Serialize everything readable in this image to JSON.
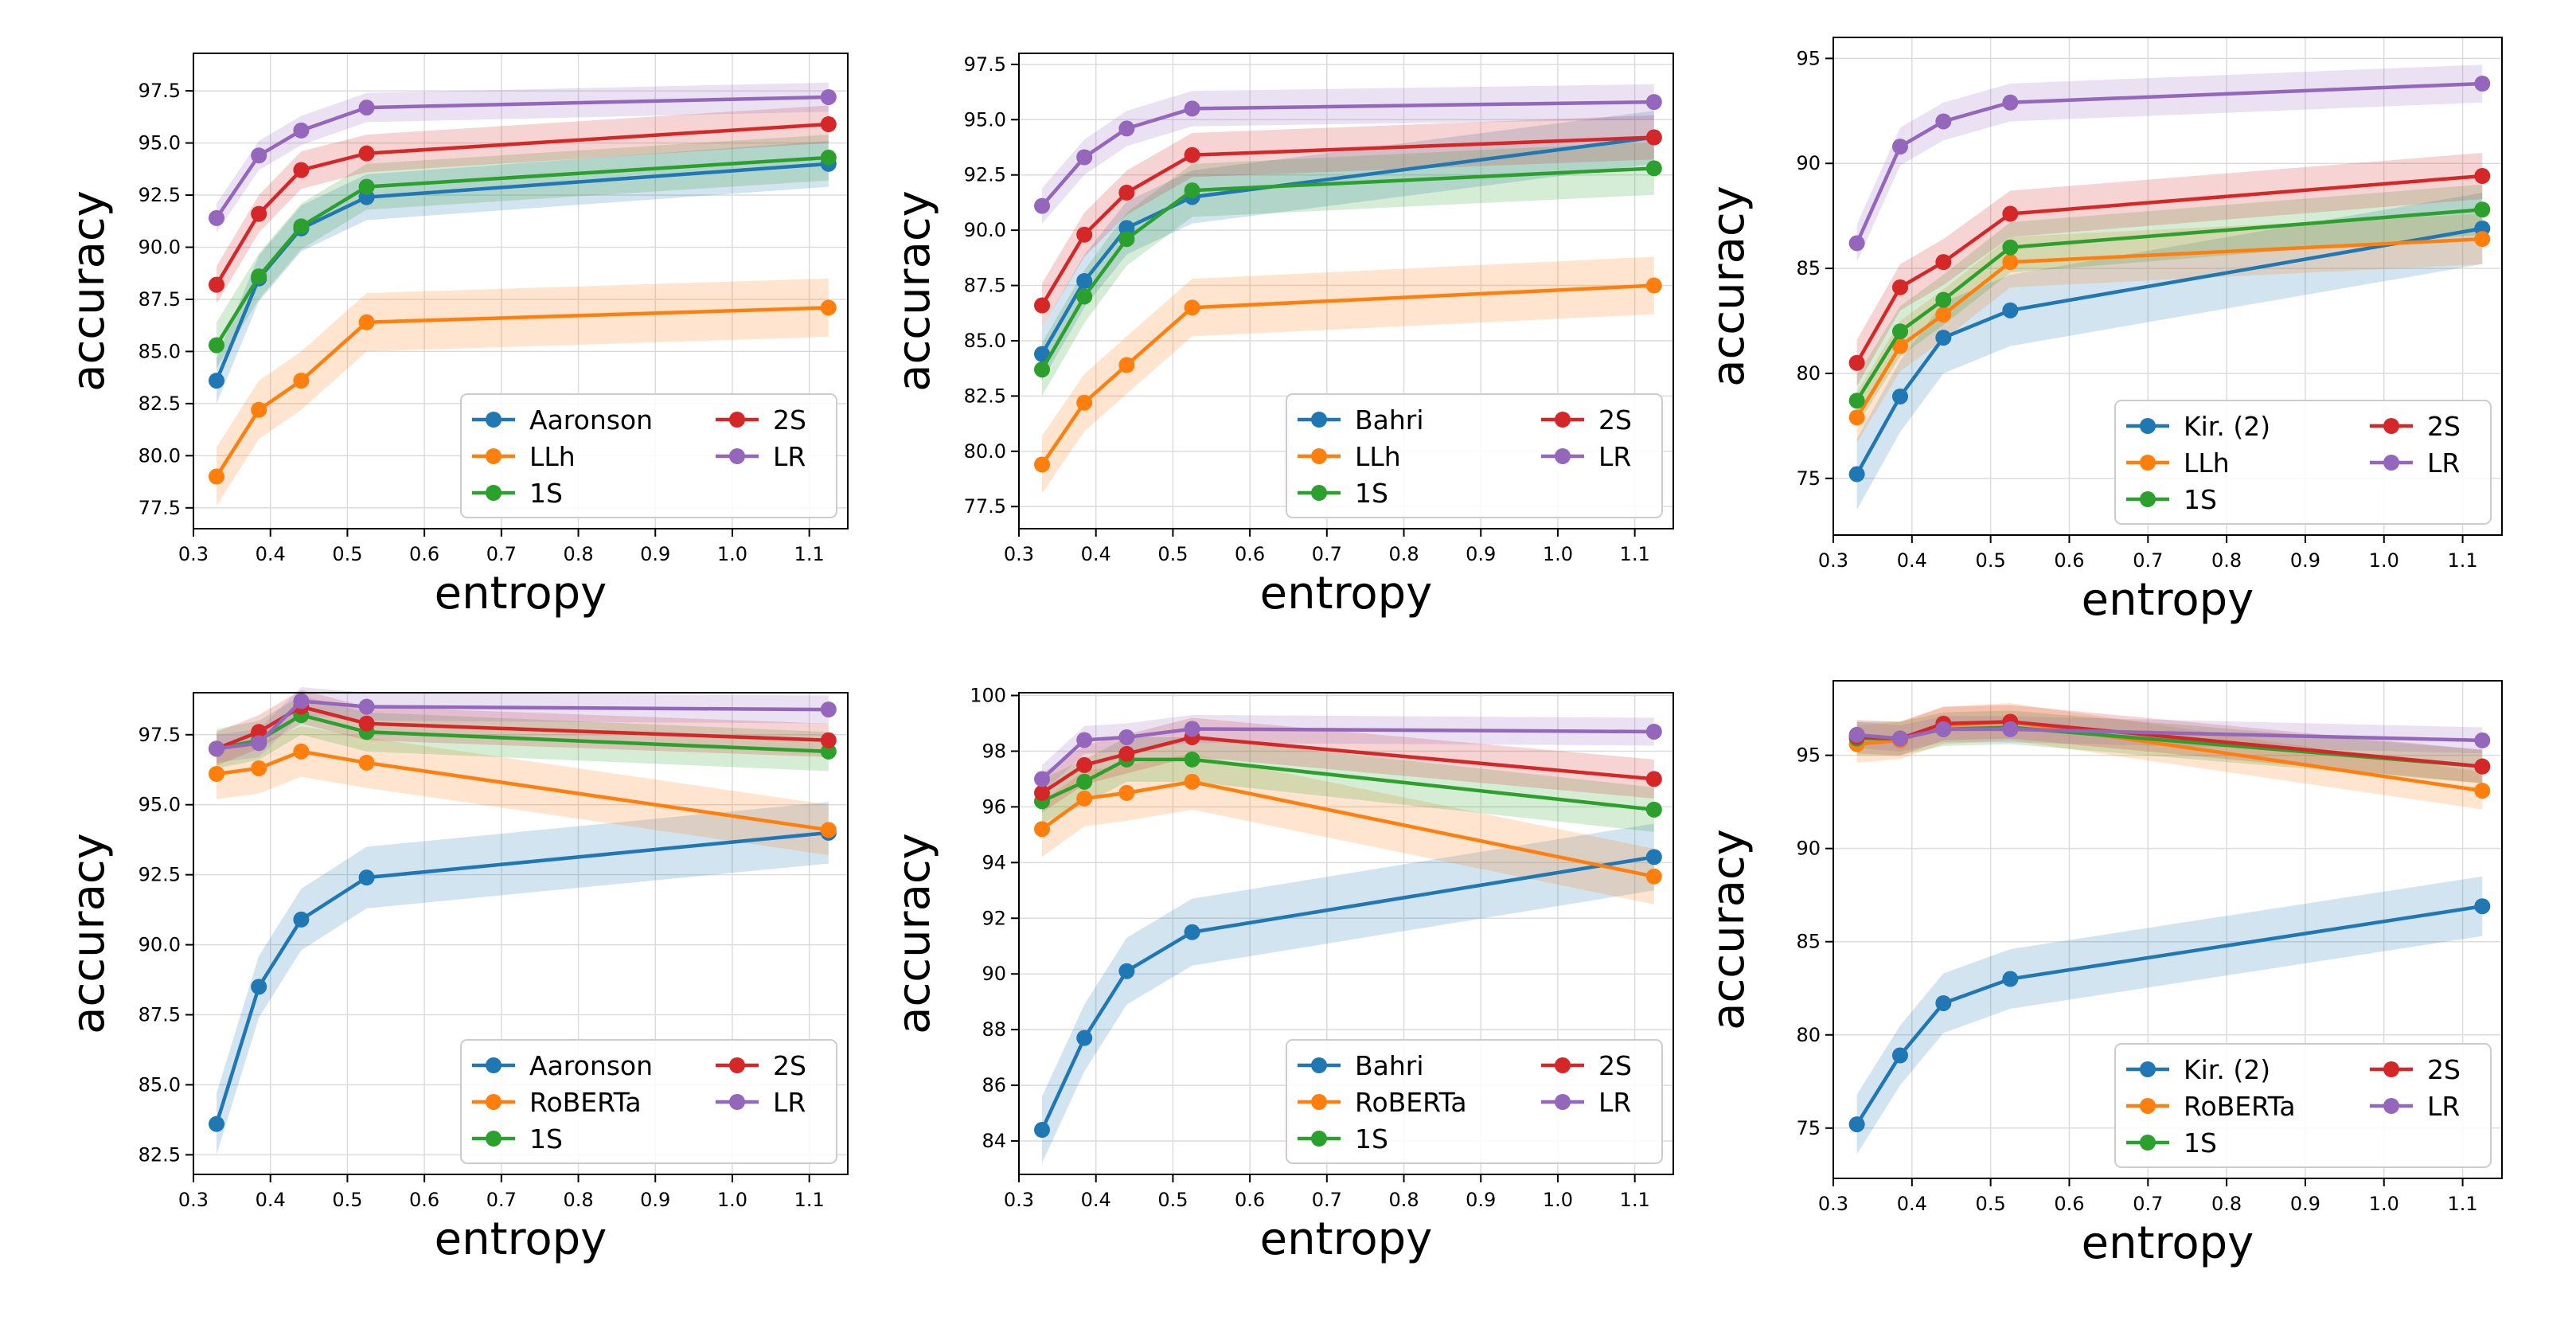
{
  "colors": {
    "blue": "#1f77b4",
    "orange": "#ff7f0e",
    "green": "#2ca02c",
    "red": "#d62728",
    "purple": "#9467bd"
  },
  "chart_data": [
    {
      "type": "line",
      "xlabel": "entropy",
      "ylabel": "accuracy",
      "xlim": [
        0.3,
        1.15
      ],
      "ylim": [
        76.5,
        99.3
      ],
      "xticks": [
        0.3,
        0.4,
        0.5,
        0.6,
        0.7,
        0.8,
        0.9,
        1.0,
        1.1
      ],
      "xtick_labels": [
        "0.3",
        "0.4",
        "0.5",
        "0.6",
        "0.7",
        "0.8",
        "0.9",
        "1.0",
        "1.1"
      ],
      "yticks": [
        77.5,
        80.0,
        82.5,
        85.0,
        87.5,
        90.0,
        92.5,
        95.0,
        97.5
      ],
      "ytick_labels": [
        "77.5",
        "80.0",
        "82.5",
        "85.0",
        "87.5",
        "90.0",
        "92.5",
        "95.0",
        "97.5"
      ],
      "x": [
        0.33,
        0.385,
        0.44,
        0.525,
        1.125
      ],
      "legend": {
        "location": "lower-right",
        "columns": 2
      },
      "series": [
        {
          "name": "Aaronson",
          "color": "blue",
          "values": [
            83.6,
            88.5,
            90.9,
            92.4,
            94.0
          ],
          "band": 1.1
        },
        {
          "name": "LLh",
          "color": "orange",
          "values": [
            79.0,
            82.2,
            83.6,
            86.4,
            87.1
          ],
          "band": 1.4
        },
        {
          "name": "1S",
          "color": "green",
          "values": [
            85.3,
            88.6,
            91.0,
            92.9,
            94.3
          ],
          "band": 1.1
        },
        {
          "name": "2S",
          "color": "red",
          "values": [
            88.2,
            91.6,
            93.7,
            94.5,
            95.9
          ],
          "band": 0.9
        },
        {
          "name": "LR",
          "color": "purple",
          "values": [
            91.4,
            94.4,
            95.6,
            96.7,
            97.2
          ],
          "band": 0.7
        }
      ]
    },
    {
      "type": "line",
      "xlabel": "entropy",
      "ylabel": "accuracy",
      "xlim": [
        0.3,
        1.15
      ],
      "ylim": [
        76.5,
        98.0
      ],
      "xticks": [
        0.3,
        0.4,
        0.5,
        0.6,
        0.7,
        0.8,
        0.9,
        1.0,
        1.1
      ],
      "xtick_labels": [
        "0.3",
        "0.4",
        "0.5",
        "0.6",
        "0.7",
        "0.8",
        "0.9",
        "1.0",
        "1.1"
      ],
      "yticks": [
        77.5,
        80.0,
        82.5,
        85.0,
        87.5,
        90.0,
        92.5,
        95.0,
        97.5
      ],
      "ytick_labels": [
        "77.5",
        "80.0",
        "82.5",
        "85.0",
        "87.5",
        "90.0",
        "92.5",
        "95.0",
        "97.5"
      ],
      "x": [
        0.33,
        0.385,
        0.44,
        0.525,
        1.125
      ],
      "legend": {
        "location": "lower-right",
        "columns": 2
      },
      "series": [
        {
          "name": "Bahri",
          "color": "blue",
          "values": [
            84.4,
            87.7,
            90.1,
            91.5,
            94.2
          ],
          "band": 1.2
        },
        {
          "name": "LLh",
          "color": "orange",
          "values": [
            79.4,
            82.2,
            83.9,
            86.5,
            87.5
          ],
          "band": 1.3
        },
        {
          "name": "1S",
          "color": "green",
          "values": [
            83.7,
            87.0,
            89.6,
            91.8,
            92.8
          ],
          "band": 1.2
        },
        {
          "name": "2S",
          "color": "red",
          "values": [
            86.6,
            89.8,
            91.7,
            93.4,
            94.2
          ],
          "band": 1.0
        },
        {
          "name": "LR",
          "color": "purple",
          "values": [
            91.1,
            93.3,
            94.6,
            95.5,
            95.8
          ],
          "band": 0.8
        }
      ]
    },
    {
      "type": "line",
      "xlabel": "entropy",
      "ylabel": "accuracy",
      "xlim": [
        0.3,
        1.15
      ],
      "ylim": [
        72.3,
        96.0
      ],
      "xticks": [
        0.3,
        0.4,
        0.5,
        0.6,
        0.7,
        0.8,
        0.9,
        1.0,
        1.1
      ],
      "xtick_labels": [
        "0.3",
        "0.4",
        "0.5",
        "0.6",
        "0.7",
        "0.8",
        "0.9",
        "1.0",
        "1.1"
      ],
      "yticks": [
        75,
        80,
        85,
        90,
        95
      ],
      "ytick_labels": [
        "75",
        "80",
        "85",
        "90",
        "95"
      ],
      "x": [
        0.33,
        0.385,
        0.44,
        0.525,
        1.125
      ],
      "legend": {
        "location": "lower-right",
        "columns": 2
      },
      "series": [
        {
          "name": "Kir. (2)",
          "color": "blue",
          "values": [
            75.2,
            78.9,
            81.7,
            83.0,
            86.9
          ],
          "band": 1.7
        },
        {
          "name": "LLh",
          "color": "orange",
          "values": [
            77.9,
            81.3,
            82.8,
            85.3,
            86.4
          ],
          "band": 1.2
        },
        {
          "name": "1S",
          "color": "green",
          "values": [
            78.7,
            82.0,
            83.5,
            86.0,
            87.8
          ],
          "band": 1.2
        },
        {
          "name": "2S",
          "color": "red",
          "values": [
            80.5,
            84.1,
            85.3,
            87.6,
            89.4
          ],
          "band": 1.1
        },
        {
          "name": "LR",
          "color": "purple",
          "values": [
            86.2,
            90.8,
            92.0,
            92.9,
            93.8
          ],
          "band": 0.9
        }
      ]
    },
    {
      "type": "line",
      "xlabel": "entropy",
      "ylabel": "accuracy",
      "xlim": [
        0.3,
        1.15
      ],
      "ylim": [
        81.8,
        99.0
      ],
      "xticks": [
        0.3,
        0.4,
        0.5,
        0.6,
        0.7,
        0.8,
        0.9,
        1.0,
        1.1
      ],
      "xtick_labels": [
        "0.3",
        "0.4",
        "0.5",
        "0.6",
        "0.7",
        "0.8",
        "0.9",
        "1.0",
        "1.1"
      ],
      "yticks": [
        82.5,
        85.0,
        87.5,
        90.0,
        92.5,
        95.0,
        97.5
      ],
      "ytick_labels": [
        "82.5",
        "85.0",
        "87.5",
        "90.0",
        "92.5",
        "95.0",
        "97.5"
      ],
      "x": [
        0.33,
        0.385,
        0.44,
        0.525,
        1.125
      ],
      "legend": {
        "location": "lower-right",
        "columns": 2
      },
      "series": [
        {
          "name": "Aaronson",
          "color": "blue",
          "values": [
            83.6,
            88.5,
            90.9,
            92.4,
            94.0
          ],
          "band": 1.1
        },
        {
          "name": "RoBERTa",
          "color": "orange",
          "values": [
            96.1,
            96.3,
            96.9,
            96.5,
            94.1
          ],
          "band": 0.9
        },
        {
          "name": "1S",
          "color": "green",
          "values": [
            97.0,
            97.3,
            98.2,
            97.6,
            96.9
          ],
          "band": 0.7
        },
        {
          "name": "2S",
          "color": "red",
          "values": [
            97.0,
            97.6,
            98.5,
            97.9,
            97.3
          ],
          "band": 0.6
        },
        {
          "name": "LR",
          "color": "purple",
          "values": [
            97.0,
            97.2,
            98.7,
            98.5,
            98.4
          ],
          "band": 0.5
        }
      ]
    },
    {
      "type": "line",
      "xlabel": "entropy",
      "ylabel": "accuracy",
      "xlim": [
        0.3,
        1.15
      ],
      "ylim": [
        82.8,
        100.1
      ],
      "xticks": [
        0.3,
        0.4,
        0.5,
        0.6,
        0.7,
        0.8,
        0.9,
        1.0,
        1.1
      ],
      "xtick_labels": [
        "0.3",
        "0.4",
        "0.5",
        "0.6",
        "0.7",
        "0.8",
        "0.9",
        "1.0",
        "1.1"
      ],
      "yticks": [
        84,
        86,
        88,
        90,
        92,
        94,
        96,
        98,
        100
      ],
      "ytick_labels": [
        "84",
        "86",
        "88",
        "90",
        "92",
        "94",
        "96",
        "98",
        "100"
      ],
      "x": [
        0.33,
        0.385,
        0.44,
        0.525,
        1.125
      ],
      "legend": {
        "location": "lower-right",
        "columns": 2
      },
      "series": [
        {
          "name": "Bahri",
          "color": "blue",
          "values": [
            84.4,
            87.7,
            90.1,
            91.5,
            94.2
          ],
          "band": 1.2
        },
        {
          "name": "RoBERTa",
          "color": "orange",
          "values": [
            95.2,
            96.3,
            96.5,
            96.9,
            93.5
          ],
          "band": 1.0
        },
        {
          "name": "1S",
          "color": "green",
          "values": [
            96.2,
            96.9,
            97.7,
            97.7,
            95.9
          ],
          "band": 0.8
        },
        {
          "name": "2S",
          "color": "red",
          "values": [
            96.5,
            97.5,
            97.9,
            98.5,
            97.0
          ],
          "band": 0.7
        },
        {
          "name": "LR",
          "color": "purple",
          "values": [
            97.0,
            98.4,
            98.5,
            98.8,
            98.7
          ],
          "band": 0.5
        }
      ]
    },
    {
      "type": "line",
      "xlabel": "entropy",
      "ylabel": "accuracy",
      "xlim": [
        0.3,
        1.15
      ],
      "ylim": [
        72.3,
        99.0
      ],
      "xticks": [
        0.3,
        0.4,
        0.5,
        0.6,
        0.7,
        0.8,
        0.9,
        1.0,
        1.1
      ],
      "xtick_labels": [
        "0.3",
        "0.4",
        "0.5",
        "0.6",
        "0.7",
        "0.8",
        "0.9",
        "1.0",
        "1.1"
      ],
      "yticks": [
        75,
        80,
        85,
        90,
        95
      ],
      "ytick_labels": [
        "75",
        "80",
        "85",
        "90",
        "95"
      ],
      "x": [
        0.33,
        0.385,
        0.44,
        0.525,
        1.125
      ],
      "legend": {
        "location": "lower-right",
        "columns": 2
      },
      "series": [
        {
          "name": "Kir. (2)",
          "color": "blue",
          "values": [
            75.2,
            78.9,
            81.7,
            83.0,
            86.9
          ],
          "band": 1.6
        },
        {
          "name": "RoBERTa",
          "color": "orange",
          "values": [
            95.6,
            95.8,
            96.6,
            96.8,
            93.1
          ],
          "band": 1.0
        },
        {
          "name": "1S",
          "color": "green",
          "values": [
            95.9,
            95.9,
            96.4,
            96.5,
            94.4
          ],
          "band": 0.9
        },
        {
          "name": "2S",
          "color": "red",
          "values": [
            96.0,
            95.9,
            96.7,
            96.8,
            94.4
          ],
          "band": 0.9
        },
        {
          "name": "LR",
          "color": "purple",
          "values": [
            96.1,
            95.9,
            96.4,
            96.4,
            95.8
          ],
          "band": 0.7
        }
      ]
    }
  ]
}
